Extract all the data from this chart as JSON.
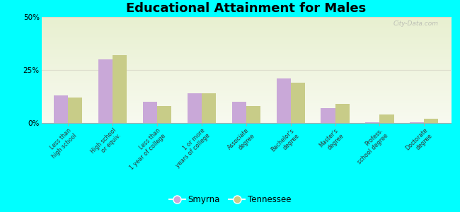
{
  "title": "Educational Attainment for Males",
  "categories": [
    "Less than\nhigh school",
    "High school\nor equiv.",
    "Less than\n1 year of college",
    "1 or more\nyears of college",
    "Associate\ndegree",
    "Bachelor's\ndegree",
    "Master's\ndegree",
    "Profess.\nschool degree",
    "Doctorate\ndegree"
  ],
  "smyrna": [
    13.0,
    30.0,
    10.0,
    14.0,
    10.0,
    21.0,
    7.0,
    0.5,
    0.5
  ],
  "tennessee": [
    12.0,
    32.0,
    8.0,
    14.0,
    8.0,
    19.0,
    9.0,
    4.0,
    2.0
  ],
  "smyrna_color": "#c9a8d8",
  "tennessee_color": "#c8cc88",
  "bg_color": "#00ffff",
  "plot_bg_color_top": "#e8f0d0",
  "plot_bg_color_bottom": "#f8faf0",
  "ylim": [
    0,
    50
  ],
  "yticks": [
    0,
    25,
    50
  ],
  "ytick_labels": [
    "0%",
    "25%",
    "50%"
  ],
  "bar_width": 0.32,
  "smyrna_label": "Smyrna",
  "tennessee_label": "Tennessee",
  "watermark": "City-Data.com"
}
